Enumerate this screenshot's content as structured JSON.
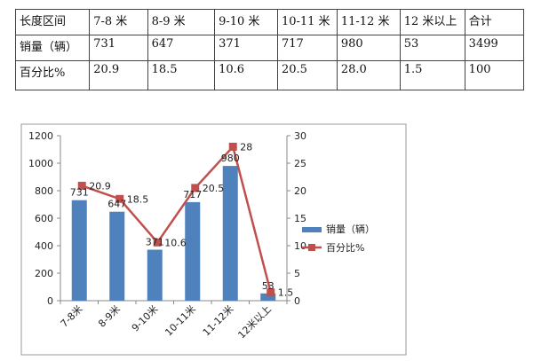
{
  "table": {
    "header": [
      "长度区间",
      "7-8 米",
      "8-9 米",
      "9-10 米",
      "10-11 米",
      "11-12 米",
      "12 米以上",
      "合计"
    ],
    "rows": [
      [
        "销量（辆）",
        "731",
        "647",
        "371",
        "717",
        "980",
        "53",
        "3499"
      ],
      [
        "百分比%",
        "20.9",
        "18.5",
        "10.6",
        "20.5",
        "28.0",
        "1.5",
        "100"
      ]
    ]
  },
  "chart_data": {
    "type": "bar+line",
    "categories": [
      "7-8米",
      "8-9米",
      "9-10米",
      "10-11米",
      "11-12米",
      "12米以上"
    ],
    "series": [
      {
        "name": "销量（辆）",
        "type": "bar",
        "axis": "left",
        "values": [
          731,
          647,
          371,
          717,
          980,
          53
        ],
        "labels": [
          "731",
          "647",
          "371",
          "717",
          "980",
          "53"
        ],
        "color": "#4f81bd"
      },
      {
        "name": "百分比%",
        "type": "line",
        "axis": "right",
        "values": [
          20.9,
          18.5,
          10.6,
          20.5,
          28,
          1.5
        ],
        "labels": [
          "20.9",
          "18.5",
          "10.6",
          "20.5",
          "28",
          "1.5"
        ],
        "color": "#c0504d"
      }
    ],
    "ylim_left": [
      0,
      1200
    ],
    "yticks_left": [
      "0",
      "200",
      "400",
      "600",
      "800",
      "1000",
      "1200"
    ],
    "ylim_right": [
      0,
      30
    ],
    "yticks_right": [
      "0",
      "5",
      "10",
      "15",
      "20",
      "25",
      "30"
    ],
    "legend": "right"
  }
}
